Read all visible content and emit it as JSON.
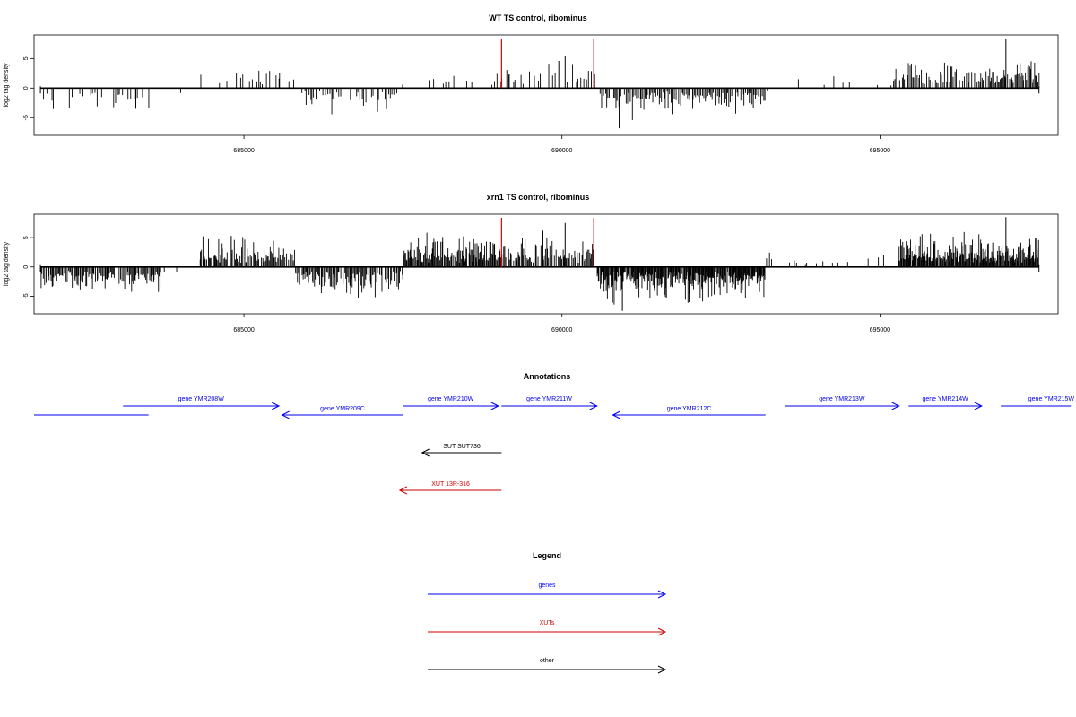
{
  "chart_data": [
    {
      "type": "bar",
      "title": "WT TS control, ribominus",
      "ylabel": "log2 tag density",
      "xlabel": "",
      "xlim": [
        681700,
        697800
      ],
      "ylim": [
        -8,
        9
      ],
      "yticks": [
        -5,
        0,
        5
      ],
      "xticks": [
        685000,
        690000,
        695000
      ],
      "markers": [
        689050,
        690500
      ],
      "marker_color": "#dd0000",
      "bar_color": "#000000",
      "segments": [
        {
          "x0": 681800,
          "x1": 683500,
          "sign": -1,
          "amp": 2.3,
          "step": 40,
          "p": 0.45
        },
        {
          "x0": 683500,
          "x1": 684300,
          "sign": -1,
          "amp": 1.2,
          "step": 60,
          "p": 0.15
        },
        {
          "x0": 684300,
          "x1": 685800,
          "sign": 1,
          "amp": 2.4,
          "step": 35,
          "p": 0.5
        },
        {
          "x0": 685850,
          "x1": 687400,
          "sign": -1,
          "amp": 2.4,
          "step": 30,
          "p": 0.7
        },
        {
          "x0": 687400,
          "x1": 687800,
          "sign": 1,
          "amp": 1.0,
          "step": 60,
          "p": 0.2
        },
        {
          "x0": 687800,
          "x1": 689050,
          "sign": 1,
          "amp": 1.8,
          "step": 35,
          "p": 0.4
        },
        {
          "x0": 689050,
          "x1": 690500,
          "sign": 1,
          "amp": 2.6,
          "step": 30,
          "p": 0.55
        },
        {
          "x0": 690600,
          "x1": 693200,
          "sign": -1,
          "amp": 2.8,
          "step": 20,
          "p": 0.85
        },
        {
          "x0": 693200,
          "x1": 693700,
          "sign": -1,
          "amp": 0.6,
          "step": 80,
          "p": 0.1
        },
        {
          "x0": 693700,
          "x1": 695200,
          "sign": 1,
          "amp": 1.5,
          "step": 50,
          "p": 0.3
        },
        {
          "x0": 695200,
          "x1": 696700,
          "sign": 1,
          "amp": 2.8,
          "step": 20,
          "p": 0.75
        },
        {
          "x0": 696700,
          "x1": 697500,
          "sign": 1,
          "amp": 3.0,
          "step": 15,
          "p": 0.9
        }
      ],
      "spikes": [
        [
          696980,
          8.3
        ],
        [
          690050,
          5.5
        ],
        [
          690900,
          -6.8
        ],
        [
          687100,
          -4.0
        ],
        [
          683300,
          -3.5
        ],
        [
          689950,
          4.6
        ]
      ]
    },
    {
      "type": "bar",
      "title": "xrn1 TS control, ribominus",
      "ylabel": "log2 tag density",
      "xlabel": "",
      "xlim": [
        681700,
        697800
      ],
      "ylim": [
        -8,
        9
      ],
      "yticks": [
        -5,
        0,
        5
      ],
      "xticks": [
        685000,
        690000,
        695000
      ],
      "markers": [
        689050,
        690500
      ],
      "marker_color": "#dd0000",
      "bar_color": "#000000",
      "segments": [
        {
          "x0": 681800,
          "x1": 683700,
          "sign": -1,
          "amp": 2.8,
          "step": 15,
          "p": 0.9
        },
        {
          "x0": 683700,
          "x1": 684300,
          "sign": -1,
          "amp": 1.5,
          "step": 40,
          "p": 0.35
        },
        {
          "x0": 684300,
          "x1": 685800,
          "sign": 1,
          "amp": 2.8,
          "step": 15,
          "p": 0.85
        },
        {
          "x0": 685800,
          "x1": 687500,
          "sign": -1,
          "amp": 2.9,
          "step": 15,
          "p": 0.9
        },
        {
          "x0": 687500,
          "x1": 689050,
          "sign": 1,
          "amp": 3.2,
          "step": 12,
          "p": 0.95
        },
        {
          "x0": 689050,
          "x1": 690500,
          "sign": 1,
          "amp": 3.0,
          "step": 15,
          "p": 0.8
        },
        {
          "x0": 690550,
          "x1": 693200,
          "sign": -1,
          "amp": 3.3,
          "step": 10,
          "p": 0.95
        },
        {
          "x0": 693200,
          "x1": 695300,
          "sign": 1,
          "amp": 1.5,
          "step": 40,
          "p": 0.35
        },
        {
          "x0": 695300,
          "x1": 697500,
          "sign": 1,
          "amp": 3.2,
          "step": 10,
          "p": 0.95
        }
      ],
      "spikes": [
        [
          696980,
          8.5
        ],
        [
          690050,
          7.5
        ],
        [
          690950,
          -7.5
        ],
        [
          684800,
          5.3
        ],
        [
          692000,
          -6.0
        ],
        [
          689700,
          6.2
        ]
      ]
    }
  ],
  "annotations": {
    "title": "Annotations",
    "features": [
      {
        "label": "gene YMR208W",
        "start": 683100,
        "end": 685550,
        "strand": "+",
        "color": "#0000ee",
        "row": 1,
        "label_gap": 10
      },
      {
        "label": "gene YMR209C",
        "start": 685600,
        "end": 687500,
        "strand": "-",
        "color": "#0000ee",
        "row": 0,
        "label_gap": 9
      },
      {
        "label": "gene YMR210W",
        "start": 687500,
        "end": 689000,
        "strand": "+",
        "color": "#0000ee",
        "row": 1,
        "label_gap": 10
      },
      {
        "label": "gene YMR211W",
        "start": 689050,
        "end": 690550,
        "strand": "+",
        "color": "#0000ee",
        "row": 1,
        "label_gap": 10
      },
      {
        "label": "gene YMR212C",
        "start": 690800,
        "end": 693200,
        "strand": "-",
        "color": "#0000ee",
        "row": 0,
        "label_gap": 9
      },
      {
        "label": "gene YMR213W",
        "start": 693500,
        "end": 695300,
        "strand": "+",
        "color": "#0000ee",
        "row": 1,
        "label_gap": 10
      },
      {
        "label": "gene YMR214W",
        "start": 695450,
        "end": 696600,
        "strand": "+",
        "color": "#0000ee",
        "row": 1,
        "label_gap": 10
      },
      {
        "label": "gene YMR215W",
        "start": 696900,
        "end": 698000,
        "strand": "+",
        "color": "#0000ee",
        "row": 1,
        "label_gap": 10
      },
      {
        "label": "SUT SUT736",
        "start": 687800,
        "end": 689050,
        "strand": "-",
        "color": "#000000",
        "row": 2,
        "label_gap": 9
      },
      {
        "label": "XUT 13R-316",
        "start": 687450,
        "end": 689050,
        "strand": "-",
        "color": "#cc0000",
        "row": 3,
        "label_gap": 9
      }
    ],
    "segment_noarrow": {
      "start": 681700,
      "end": 683500,
      "color": "#0000ee",
      "row": 0
    }
  },
  "legend": {
    "title": "Legend",
    "items": [
      {
        "label": "genes",
        "color": "#0000ee"
      },
      {
        "label": "XUTs",
        "color": "#cc0000"
      },
      {
        "label": "other",
        "color": "#000000"
      }
    ]
  }
}
